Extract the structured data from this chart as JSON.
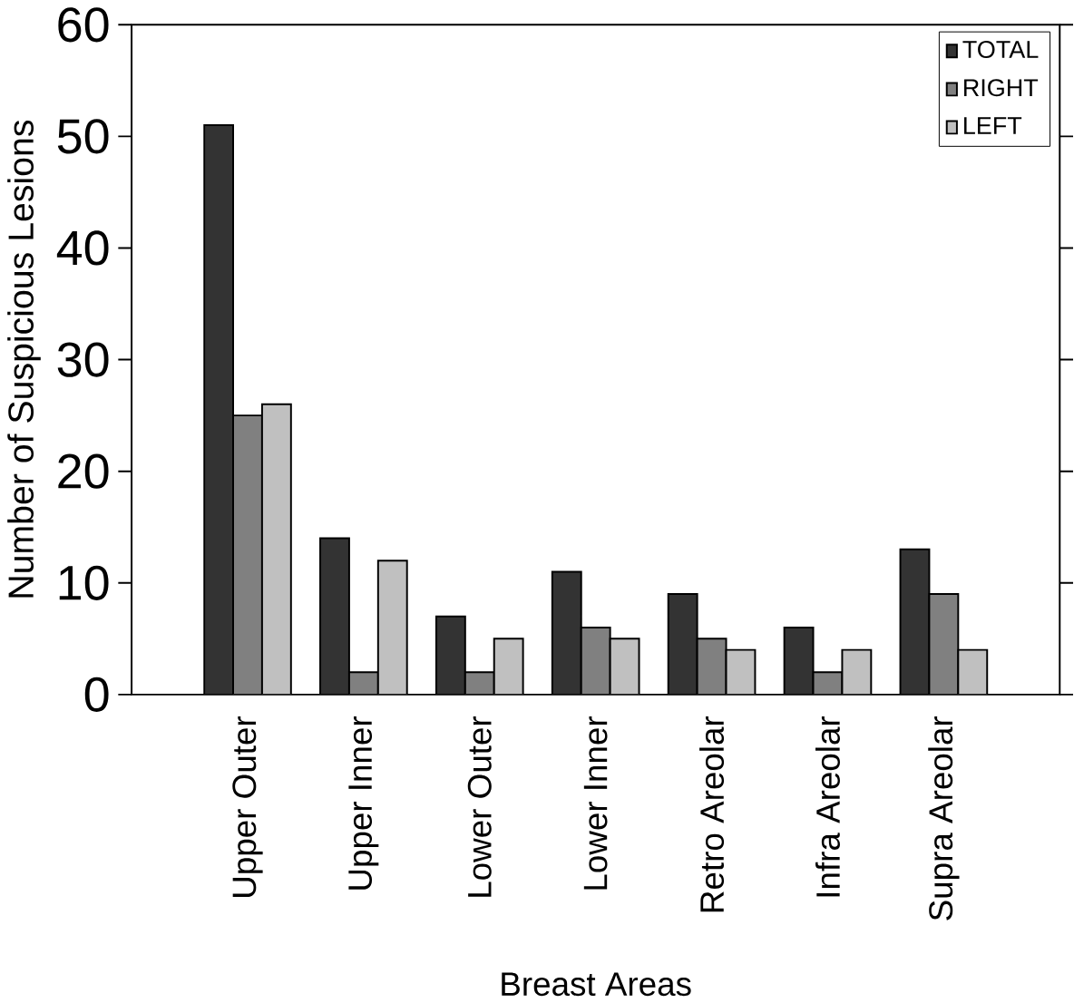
{
  "chart_data": {
    "type": "bar",
    "xlabel": "Breast Areas",
    "ylabel": "Number of Suspicious Lesions",
    "categories": [
      "Upper Outer",
      "Upper Inner",
      "Lower Outer",
      "Lower Inner",
      "Retro Areolar",
      "Infra Areolar",
      "Supra Areolar"
    ],
    "series": [
      {
        "name": "TOTAL",
        "color": "#333333",
        "values": [
          51,
          14,
          7,
          11,
          9,
          6,
          13
        ]
      },
      {
        "name": "RIGHT",
        "color": "#808080",
        "values": [
          25,
          2,
          2,
          6,
          5,
          2,
          9
        ]
      },
      {
        "name": "LEFT",
        "color": "#c0c0c0",
        "values": [
          26,
          12,
          5,
          5,
          4,
          4,
          4
        ]
      }
    ],
    "ylim": [
      0,
      60
    ],
    "yticks": [
      0,
      10,
      20,
      30,
      40,
      50,
      60
    ],
    "grid": false,
    "legend": "top right"
  }
}
